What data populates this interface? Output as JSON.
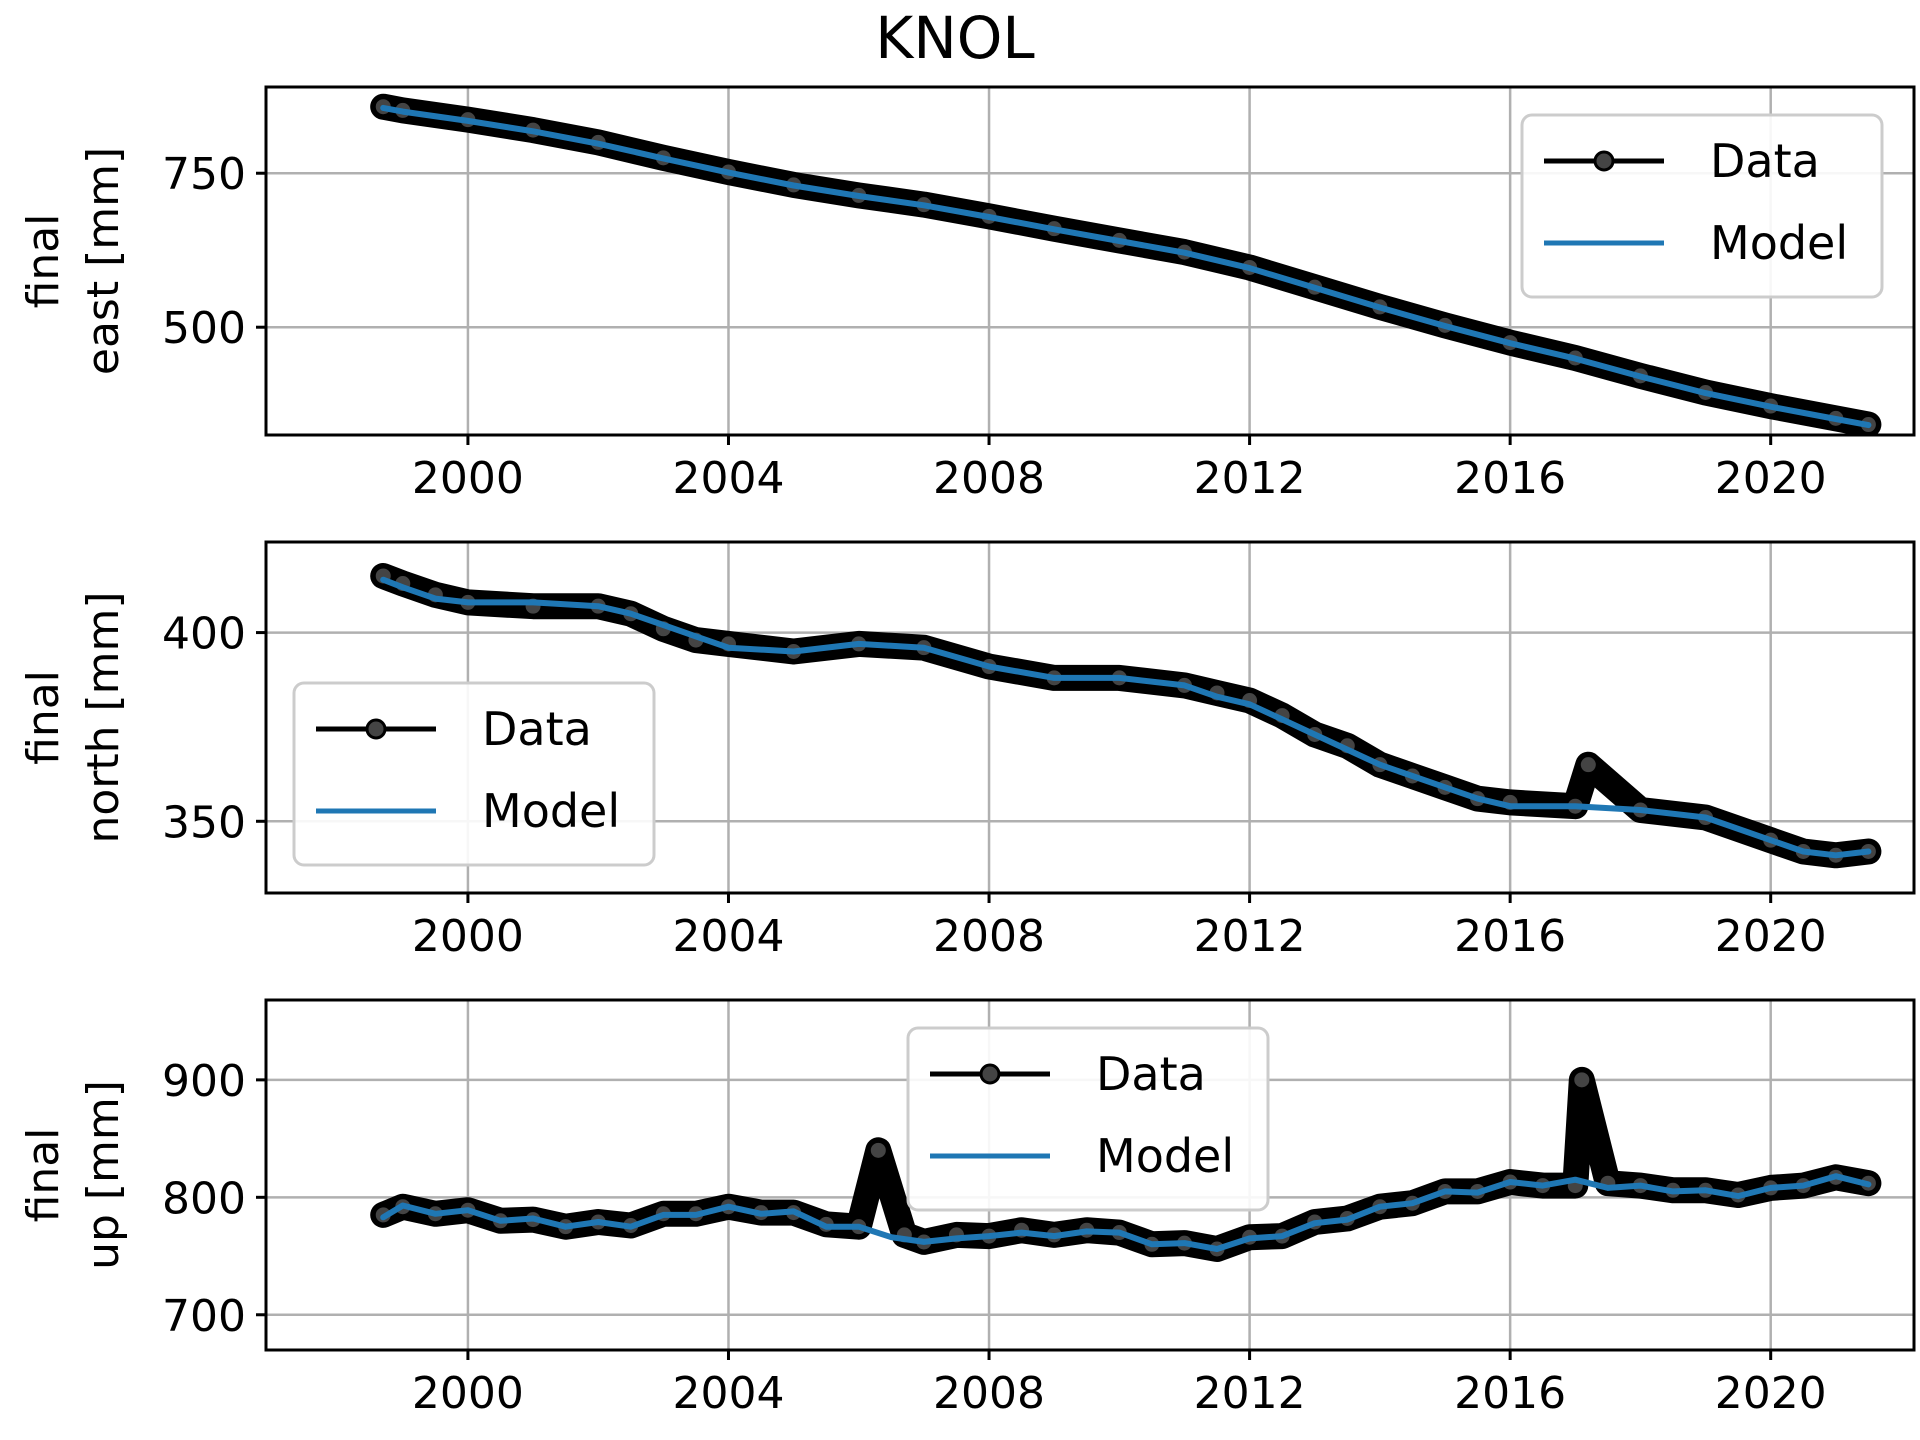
{
  "title": "KNOL",
  "chart_data": [
    {
      "type": "line",
      "ylabel_line1": "final",
      "ylabel_line2": "east [mm]",
      "xlim": [
        1996.9,
        2022.2
      ],
      "ylim": [
        325,
        890
      ],
      "xticks": [
        2000,
        2004,
        2008,
        2012,
        2016,
        2020
      ],
      "yticks": [
        500,
        750
      ],
      "grid": true,
      "legend": {
        "placement": "top-right",
        "entries": [
          "Data",
          "Model"
        ]
      },
      "series": [
        {
          "name": "Data",
          "color": "#000000",
          "marker": "circle",
          "x": [
            1998.7,
            1999.0,
            2000.0,
            2001.0,
            2002.0,
            2003.0,
            2004.0,
            2005.0,
            2006.0,
            2007.0,
            2008.0,
            2009.0,
            2010.0,
            2011.0,
            2012.0,
            2013.0,
            2014.0,
            2015.0,
            2016.0,
            2017.0,
            2018.0,
            2019.0,
            2020.0,
            2021.0,
            2021.5
          ],
          "y": [
            858,
            852,
            837,
            820,
            800,
            775,
            752,
            731,
            714,
            699,
            680,
            660,
            641,
            622,
            597,
            565,
            533,
            503,
            475,
            450,
            421,
            394,
            372,
            352,
            342
          ]
        },
        {
          "name": "Model",
          "color": "#1f77b4",
          "x": [
            1998.7,
            1999.0,
            2000.0,
            2001.0,
            2002.0,
            2003.0,
            2004.0,
            2005.0,
            2006.0,
            2007.0,
            2008.0,
            2009.0,
            2010.0,
            2011.0,
            2012.0,
            2013.0,
            2014.0,
            2015.0,
            2016.0,
            2017.0,
            2018.0,
            2019.0,
            2020.0,
            2021.0,
            2021.5
          ],
          "y": [
            856,
            850,
            835,
            818,
            798,
            774,
            751,
            730,
            713,
            698,
            679,
            659,
            640,
            621,
            596,
            564,
            532,
            502,
            474,
            449,
            420,
            393,
            371,
            351,
            341
          ]
        }
      ]
    },
    {
      "type": "line",
      "ylabel_line1": "final",
      "ylabel_line2": "north [mm]",
      "xlim": [
        1996.9,
        2022.2
      ],
      "ylim": [
        331,
        424
      ],
      "xticks": [
        2000,
        2004,
        2008,
        2012,
        2016,
        2020
      ],
      "yticks": [
        350,
        400
      ],
      "grid": true,
      "legend": {
        "placement": "lower-left",
        "entries": [
          "Data",
          "Model"
        ]
      },
      "series": [
        {
          "name": "Data",
          "color": "#000000",
          "marker": "circle",
          "x": [
            1998.7,
            1999.0,
            1999.5,
            2000.0,
            2001.0,
            2002.0,
            2002.5,
            2003.0,
            2003.5,
            2004.0,
            2005.0,
            2006.0,
            2007.0,
            2008.0,
            2009.0,
            2010.0,
            2011.0,
            2011.5,
            2012.0,
            2012.5,
            2013.0,
            2013.5,
            2014.0,
            2014.5,
            2015.0,
            2015.5,
            2016.0,
            2017.0,
            2017.2,
            2018.0,
            2019.0,
            2020.0,
            2020.5,
            2021.0,
            2021.5
          ],
          "y": [
            415,
            413,
            410,
            408,
            407,
            407,
            405,
            401,
            398,
            397,
            395,
            397,
            396,
            391,
            388,
            388,
            386,
            384,
            382,
            378,
            373,
            370,
            365,
            362,
            359,
            356,
            355,
            354,
            365,
            353,
            351,
            345,
            342,
            341,
            342
          ]
        },
        {
          "name": "Model",
          "color": "#1f77b4",
          "x": [
            1998.7,
            1999.0,
            1999.5,
            2000.0,
            2001.0,
            2002.0,
            2002.5,
            2003.0,
            2003.5,
            2004.0,
            2005.0,
            2006.0,
            2007.0,
            2008.0,
            2009.0,
            2010.0,
            2011.0,
            2011.5,
            2012.0,
            2012.5,
            2013.0,
            2013.5,
            2014.0,
            2014.5,
            2015.0,
            2015.5,
            2016.0,
            2017.0,
            2018.0,
            2019.0,
            2020.0,
            2020.5,
            2021.0,
            2021.5
          ],
          "y": [
            414,
            412,
            409,
            408,
            408,
            407,
            405,
            402,
            399,
            396,
            395,
            397,
            396,
            391,
            388,
            388,
            386,
            383,
            381,
            377,
            373,
            369,
            365,
            362,
            359,
            356,
            354,
            354,
            353,
            351,
            345,
            342,
            341,
            342
          ]
        }
      ]
    },
    {
      "type": "line",
      "ylabel_line1": "final",
      "ylabel_line2": "up [mm]",
      "xlim": [
        1996.9,
        2022.2
      ],
      "ylim": [
        670,
        968
      ],
      "xticks": [
        2000,
        2004,
        2008,
        2012,
        2016,
        2020
      ],
      "yticks": [
        700,
        800,
        900
      ],
      "grid": true,
      "legend": {
        "placement": "upper-center",
        "entries": [
          "Data",
          "Model"
        ]
      },
      "series": [
        {
          "name": "Data",
          "color": "#000000",
          "marker": "circle",
          "x": [
            1998.7,
            1999.0,
            1999.5,
            2000.0,
            2000.5,
            2001.0,
            2001.5,
            2002.0,
            2002.5,
            2003.0,
            2003.5,
            2004.0,
            2004.5,
            2005.0,
            2005.5,
            2006.0,
            2006.3,
            2006.7,
            2007.0,
            2007.5,
            2008.0,
            2008.5,
            2009.0,
            2009.5,
            2010.0,
            2010.5,
            2011.0,
            2011.5,
            2012.0,
            2012.5,
            2013.0,
            2013.5,
            2014.0,
            2014.5,
            2015.0,
            2015.5,
            2016.0,
            2016.5,
            2017.0,
            2017.1,
            2017.5,
            2018.0,
            2018.5,
            2019.0,
            2019.5,
            2020.0,
            2020.5,
            2021.0,
            2021.5
          ],
          "y": [
            785,
            792,
            786,
            789,
            780,
            781,
            775,
            779,
            776,
            786,
            786,
            792,
            787,
            787,
            777,
            775,
            840,
            768,
            762,
            768,
            767,
            772,
            768,
            772,
            770,
            760,
            761,
            756,
            766,
            767,
            779,
            782,
            792,
            795,
            805,
            805,
            813,
            810,
            810,
            900,
            812,
            810,
            806,
            806,
            802,
            808,
            810,
            817,
            812
          ]
        },
        {
          "name": "Model",
          "color": "#1f77b4",
          "x": [
            1998.7,
            1999.0,
            1999.5,
            2000.0,
            2000.5,
            2001.0,
            2001.5,
            2002.0,
            2002.5,
            2003.0,
            2003.5,
            2004.0,
            2004.5,
            2005.0,
            2005.5,
            2006.0,
            2006.5,
            2007.0,
            2007.5,
            2008.0,
            2008.5,
            2009.0,
            2009.5,
            2010.0,
            2010.5,
            2011.0,
            2011.5,
            2012.0,
            2012.5,
            2013.0,
            2013.5,
            2014.0,
            2014.5,
            2015.0,
            2015.5,
            2016.0,
            2016.5,
            2017.0,
            2017.5,
            2018.0,
            2018.5,
            2019.0,
            2019.5,
            2020.0,
            2020.5,
            2021.0,
            2021.5
          ],
          "y": [
            783,
            793,
            786,
            789,
            780,
            782,
            775,
            779,
            775,
            785,
            785,
            792,
            786,
            788,
            775,
            775,
            766,
            762,
            765,
            767,
            770,
            767,
            771,
            770,
            760,
            761,
            756,
            765,
            767,
            778,
            781,
            792,
            795,
            805,
            804,
            813,
            810,
            815,
            808,
            810,
            805,
            806,
            801,
            808,
            810,
            818,
            811
          ]
        }
      ]
    }
  ]
}
